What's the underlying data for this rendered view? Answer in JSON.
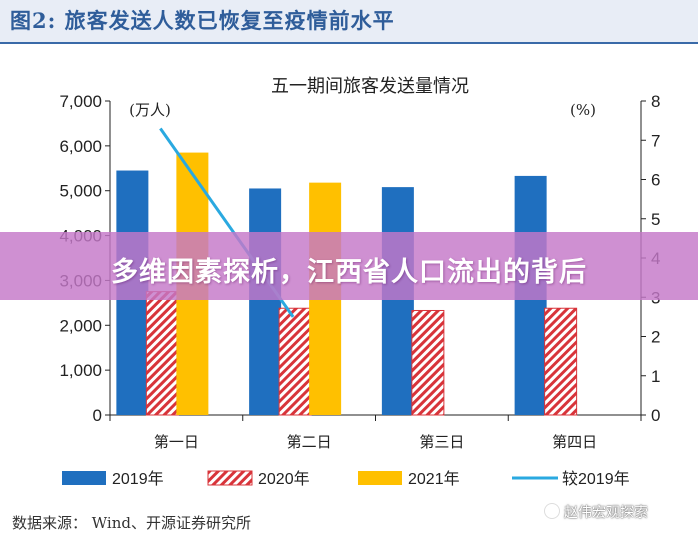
{
  "figure": {
    "title": "图2:  旅客发送人数已恢复至疫情前水平"
  },
  "banner": {
    "text": "多维因素探析，江西省人口流出的背后"
  },
  "footer": {
    "source": "数据来源：  Wind、开源证券研究所",
    "watermark": "赵伟宏观探索"
  },
  "colors": {
    "s2019": "#1f6fbf",
    "s2020": "#d8343a",
    "s2021": "#ffc000",
    "line": "#2aa9e0"
  },
  "chart_data": {
    "type": "bar",
    "title": "五一期间旅客发送量情况",
    "categories": [
      "第一日",
      "第二日",
      "第三日",
      "第四日"
    ],
    "left_unit": "(万人)",
    "right_unit": "(%)",
    "ylim_left": [
      0,
      7000
    ],
    "yticks_left": [
      "0",
      "1,000",
      "2,000",
      "3,000",
      "4,000",
      "5,000",
      "6,000",
      "7,000"
    ],
    "ylim_right": [
      0,
      8
    ],
    "yticks_right": [
      "0",
      "1",
      "2",
      "3",
      "4",
      "5",
      "6",
      "7",
      "8"
    ],
    "series": [
      {
        "name": "2019年",
        "style": "solid",
        "axis": "left",
        "values": [
          5450,
          5050,
          5080,
          5330
        ]
      },
      {
        "name": "2020年",
        "style": "hatched",
        "axis": "left",
        "values": [
          2750,
          2380,
          2330,
          2380
        ]
      },
      {
        "name": "2021年",
        "style": "solid",
        "axis": "left",
        "values": [
          5850,
          5180,
          null,
          null
        ]
      },
      {
        "name": "较2019年",
        "style": "line",
        "axis": "right",
        "values": [
          7.3,
          2.5,
          null,
          null
        ]
      }
    ]
  }
}
